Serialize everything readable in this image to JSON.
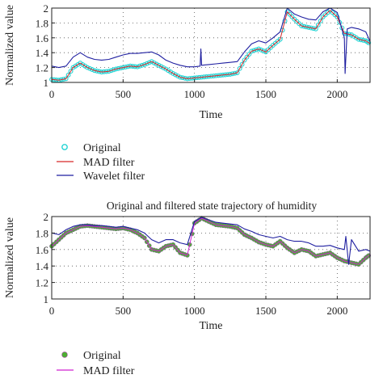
{
  "chart_data": [
    {
      "type": "line",
      "title": "",
      "xlabel": "Time",
      "ylabel": "Normalized value",
      "xlim": [
        0,
        2230
      ],
      "ylim": [
        1,
        2
      ],
      "xticks": [
        "0",
        "500",
        "1000",
        "1500",
        "2000"
      ],
      "yticks": [
        "1",
        "1.2",
        "1.4",
        "1.6",
        "1.8",
        "2"
      ],
      "grid": true,
      "legend_position": "below",
      "series": [
        {
          "name": "Original",
          "marker": "circle-open",
          "color": "#22d3d3",
          "x": [
            0,
            50,
            100,
            150,
            200,
            250,
            300,
            350,
            400,
            450,
            500,
            550,
            600,
            650,
            700,
            750,
            800,
            850,
            900,
            950,
            1000,
            1050,
            1100,
            1150,
            1200,
            1250,
            1300,
            1350,
            1400,
            1450,
            1500,
            1550,
            1600,
            1650,
            1700,
            1750,
            1800,
            1850,
            1900,
            1950,
            2000,
            2050,
            2100,
            2150,
            2200,
            2230
          ],
          "y": [
            1.04,
            1.03,
            1.05,
            1.2,
            1.26,
            1.2,
            1.16,
            1.14,
            1.15,
            1.18,
            1.2,
            1.22,
            1.21,
            1.24,
            1.28,
            1.23,
            1.18,
            1.12,
            1.07,
            1.05,
            1.06,
            1.07,
            1.08,
            1.09,
            1.1,
            1.11,
            1.13,
            1.3,
            1.42,
            1.45,
            1.41,
            1.5,
            1.58,
            1.95,
            1.85,
            1.76,
            1.74,
            1.72,
            1.88,
            1.97,
            1.88,
            1.66,
            1.64,
            1.58,
            1.56,
            1.52
          ]
        },
        {
          "name": "MAD filter",
          "color": "#d62728",
          "x": [
            0,
            50,
            100,
            150,
            200,
            250,
            300,
            350,
            400,
            450,
            500,
            550,
            600,
            650,
            700,
            750,
            800,
            850,
            900,
            950,
            1000,
            1050,
            1100,
            1150,
            1200,
            1250,
            1300,
            1350,
            1400,
            1450,
            1500,
            1550,
            1600,
            1650,
            1700,
            1750,
            1800,
            1850,
            1900,
            1950,
            2000,
            2050,
            2100,
            2150,
            2200,
            2230
          ],
          "y": [
            1.04,
            1.03,
            1.05,
            1.2,
            1.26,
            1.2,
            1.16,
            1.14,
            1.15,
            1.18,
            1.2,
            1.22,
            1.21,
            1.24,
            1.28,
            1.23,
            1.18,
            1.12,
            1.07,
            1.05,
            1.06,
            1.07,
            1.08,
            1.09,
            1.1,
            1.11,
            1.13,
            1.3,
            1.42,
            1.45,
            1.41,
            1.5,
            1.58,
            1.95,
            1.85,
            1.76,
            1.74,
            1.72,
            1.88,
            1.97,
            1.88,
            1.66,
            1.64,
            1.58,
            1.56,
            1.52
          ]
        },
        {
          "name": "Wavelet filter",
          "color": "#1f1fa0",
          "x": [
            0,
            50,
            100,
            150,
            200,
            250,
            300,
            350,
            400,
            450,
            500,
            550,
            600,
            650,
            700,
            750,
            800,
            850,
            900,
            950,
            1000,
            1040,
            1045,
            1050,
            1100,
            1150,
            1200,
            1250,
            1300,
            1350,
            1400,
            1450,
            1500,
            1550,
            1600,
            1650,
            1700,
            1750,
            1800,
            1850,
            1900,
            1950,
            2000,
            2050,
            2055,
            2070,
            2100,
            2150,
            2200,
            2230
          ],
          "y": [
            1.22,
            1.2,
            1.22,
            1.34,
            1.4,
            1.34,
            1.31,
            1.3,
            1.31,
            1.34,
            1.37,
            1.39,
            1.39,
            1.4,
            1.41,
            1.37,
            1.3,
            1.26,
            1.23,
            1.21,
            1.21,
            1.22,
            1.45,
            1.23,
            1.24,
            1.25,
            1.26,
            1.27,
            1.28,
            1.41,
            1.52,
            1.56,
            1.53,
            1.6,
            1.68,
            2.0,
            1.92,
            1.88,
            1.85,
            1.84,
            1.95,
            2.0,
            1.94,
            1.6,
            1.12,
            1.72,
            1.74,
            1.72,
            1.68,
            1.55
          ]
        }
      ]
    },
    {
      "type": "line",
      "title": "Original and filtered state trajectory of humidity",
      "xlabel": "Time",
      "ylabel": "Normalized value",
      "xlim": [
        0,
        2230
      ],
      "ylim": [
        1,
        2
      ],
      "xticks": [
        "0",
        "500",
        "1000",
        "1500",
        "2000"
      ],
      "yticks": [
        "1",
        "1.2",
        "1.4",
        "1.6",
        "1.8",
        "2"
      ],
      "grid": true,
      "legend_position": "below",
      "series": [
        {
          "name": "Original",
          "marker": "star",
          "color": "#4caf32",
          "x": [
            0,
            50,
            100,
            150,
            200,
            250,
            300,
            350,
            400,
            450,
            500,
            550,
            600,
            650,
            700,
            750,
            800,
            850,
            900,
            950,
            1000,
            1050,
            1100,
            1150,
            1200,
            1250,
            1300,
            1350,
            1400,
            1450,
            1500,
            1550,
            1600,
            1650,
            1700,
            1750,
            1800,
            1850,
            1900,
            1950,
            2000,
            2050,
            2100,
            2150,
            2200,
            2230
          ],
          "y": [
            1.64,
            1.72,
            1.8,
            1.84,
            1.88,
            1.89,
            1.88,
            1.87,
            1.86,
            1.85,
            1.86,
            1.84,
            1.8,
            1.74,
            1.6,
            1.58,
            1.64,
            1.66,
            1.56,
            1.53,
            1.92,
            1.98,
            1.94,
            1.9,
            1.89,
            1.88,
            1.86,
            1.78,
            1.74,
            1.69,
            1.66,
            1.64,
            1.7,
            1.62,
            1.56,
            1.6,
            1.58,
            1.52,
            1.54,
            1.56,
            1.5,
            1.46,
            1.44,
            1.42,
            1.5,
            1.54
          ]
        },
        {
          "name": "MAD filter",
          "color": "#d020d0",
          "x": [
            0,
            50,
            100,
            150,
            200,
            250,
            300,
            350,
            400,
            450,
            500,
            550,
            600,
            650,
            700,
            750,
            800,
            850,
            900,
            950,
            1000,
            1050,
            1100,
            1150,
            1200,
            1250,
            1300,
            1350,
            1400,
            1450,
            1500,
            1550,
            1600,
            1650,
            1700,
            1750,
            1800,
            1850,
            1900,
            1950,
            2000,
            2050,
            2100,
            2150,
            2200,
            2230
          ],
          "y": [
            1.64,
            1.72,
            1.8,
            1.84,
            1.88,
            1.89,
            1.88,
            1.87,
            1.86,
            1.85,
            1.86,
            1.84,
            1.8,
            1.74,
            1.6,
            1.58,
            1.64,
            1.66,
            1.56,
            1.53,
            1.92,
            1.98,
            1.94,
            1.9,
            1.89,
            1.88,
            1.86,
            1.78,
            1.74,
            1.69,
            1.66,
            1.64,
            1.7,
            1.62,
            1.56,
            1.6,
            1.58,
            1.52,
            1.54,
            1.56,
            1.5,
            1.46,
            1.44,
            1.42,
            1.5,
            1.54
          ]
        },
        {
          "name": "",
          "color": "#1f1fa0",
          "x": [
            0,
            50,
            100,
            150,
            200,
            250,
            300,
            350,
            400,
            450,
            500,
            550,
            600,
            650,
            700,
            750,
            800,
            850,
            900,
            950,
            1000,
            1050,
            1100,
            1150,
            1200,
            1250,
            1300,
            1350,
            1400,
            1450,
            1500,
            1550,
            1600,
            1650,
            1700,
            1750,
            1800,
            1850,
            1900,
            1950,
            2000,
            2050,
            2060,
            2080,
            2100,
            2150,
            2200,
            2230
          ],
          "y": [
            1.8,
            1.78,
            1.84,
            1.88,
            1.9,
            1.9,
            1.89,
            1.89,
            1.88,
            1.87,
            1.88,
            1.86,
            1.84,
            1.8,
            1.72,
            1.68,
            1.72,
            1.72,
            1.68,
            1.66,
            1.94,
            1.99,
            1.96,
            1.93,
            1.92,
            1.91,
            1.9,
            1.85,
            1.82,
            1.78,
            1.76,
            1.74,
            1.76,
            1.72,
            1.7,
            1.7,
            1.68,
            1.64,
            1.64,
            1.65,
            1.62,
            1.6,
            1.76,
            1.42,
            1.72,
            1.58,
            1.6,
            1.58
          ]
        }
      ]
    }
  ],
  "legend_top": [
    {
      "label": "Original"
    },
    {
      "label": "MAD filter"
    },
    {
      "label": "Wavelet filter"
    }
  ],
  "legend_bottom": [
    {
      "label": "Original"
    },
    {
      "label": "MAD filter"
    }
  ]
}
